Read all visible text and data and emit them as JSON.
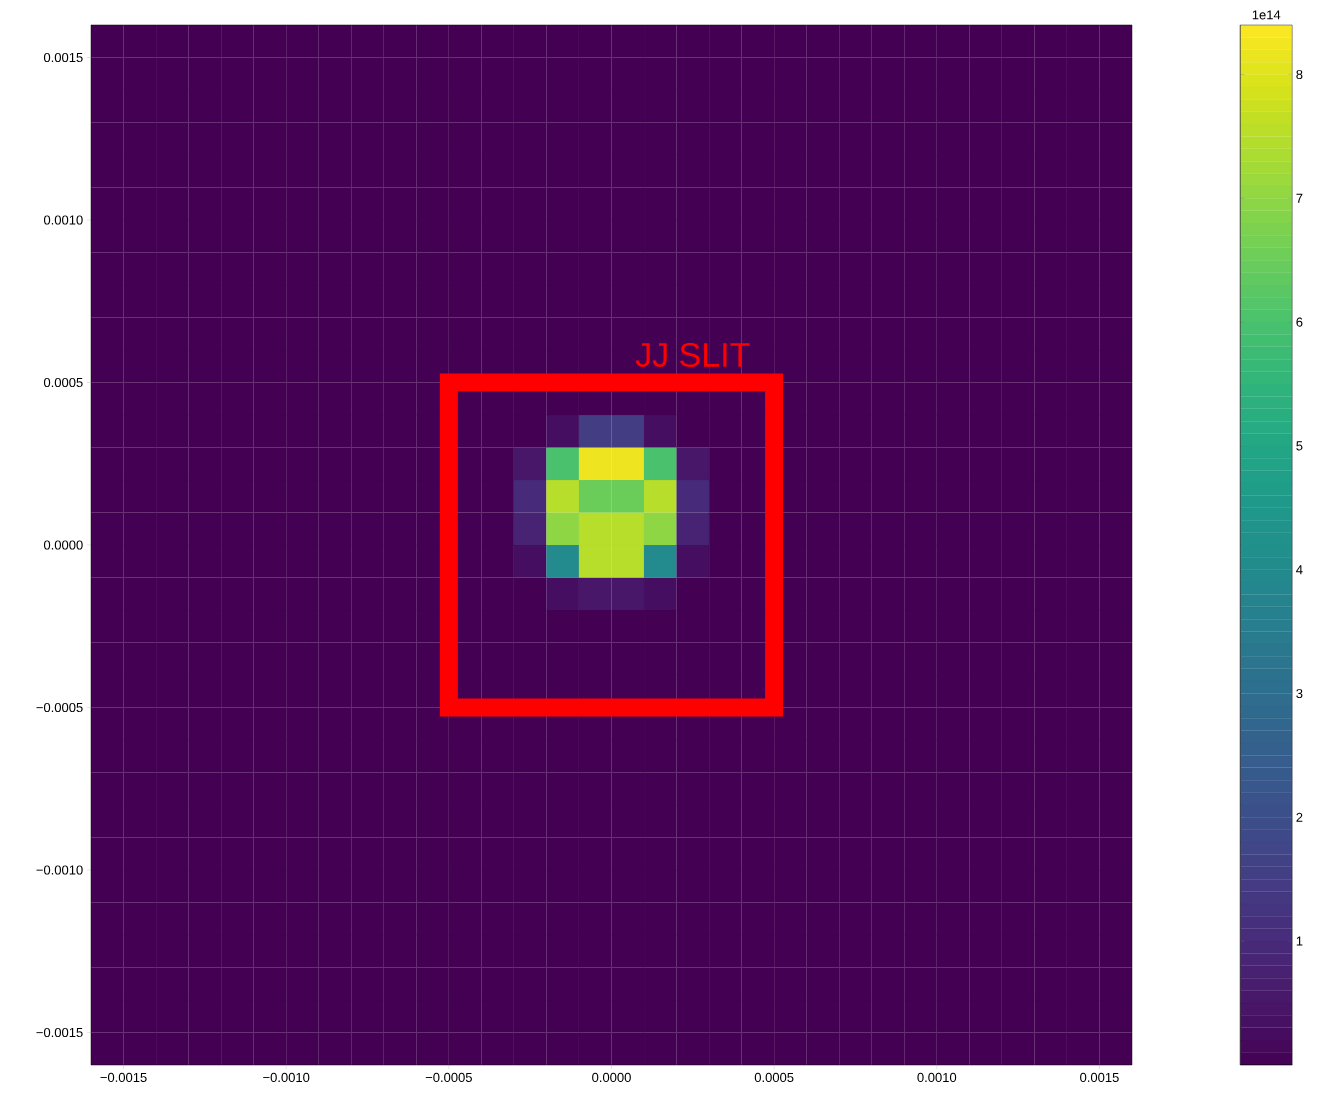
{
  "chart_data": {
    "type": "heatmap",
    "xlim": [
      -0.0016,
      0.0016
    ],
    "ylim": [
      -0.0016,
      0.0016
    ],
    "xticks": [
      {
        "value": -0.0015,
        "label": "−0.0015"
      },
      {
        "value": -0.001,
        "label": "−0.0010"
      },
      {
        "value": -0.0005,
        "label": "−0.0005"
      },
      {
        "value": 0,
        "label": "0.0000"
      },
      {
        "value": 0.0005,
        "label": "0.0005"
      },
      {
        "value": 0.001,
        "label": "0.0010"
      },
      {
        "value": 0.0015,
        "label": "0.0015"
      }
    ],
    "yticks": [
      {
        "value": -0.0015,
        "label": "−0.0015"
      },
      {
        "value": -0.001,
        "label": "−0.0010"
      },
      {
        "value": -0.0005,
        "label": "−0.0005"
      },
      {
        "value": 0,
        "label": "0.0000"
      },
      {
        "value": 0.0005,
        "label": "0.0005"
      },
      {
        "value": 0.001,
        "label": "0.0010"
      },
      {
        "value": 0.0015,
        "label": "0.0015"
      }
    ],
    "clabel": "1e14",
    "clim": [
      0,
      8.4
    ],
    "cticks": [
      1,
      2,
      3,
      4,
      5,
      6,
      7,
      8
    ],
    "annotations": [
      "JJ SLIT"
    ],
    "cells": [
      [
        0,
        0,
        0,
        0,
        0,
        0,
        0,
        0,
        0,
        0,
        0,
        0,
        0,
        0,
        0,
        0,
        0,
        0,
        0,
        0,
        0,
        0,
        0,
        0,
        0,
        0,
        0,
        0,
        0,
        0,
        0,
        0
      ],
      [
        0,
        0,
        0,
        0,
        0,
        0,
        0,
        0,
        0,
        0,
        0,
        0,
        0,
        0,
        0,
        0,
        0,
        0,
        0,
        0,
        0,
        0,
        0,
        0,
        0,
        0,
        0,
        0,
        0,
        0,
        0,
        0
      ],
      [
        0,
        0,
        0,
        0,
        0,
        0,
        0,
        0,
        0,
        0,
        0,
        0,
        0,
        0,
        0,
        0,
        0,
        0,
        0,
        0,
        0,
        0,
        0,
        0,
        0,
        0,
        0,
        0,
        0,
        0,
        0,
        0
      ],
      [
        0,
        0,
        0,
        0,
        0,
        0,
        0,
        0,
        0,
        0,
        0,
        0,
        0,
        0,
        0,
        0,
        0,
        0,
        0,
        0,
        0,
        0,
        0,
        0,
        0,
        0,
        0,
        0,
        0,
        0,
        0,
        0
      ],
      [
        0,
        0,
        0,
        0,
        0,
        0,
        0,
        0,
        0,
        0,
        0,
        0,
        0,
        0,
        0,
        0,
        0,
        0,
        0,
        0,
        0,
        0,
        0,
        0,
        0,
        0,
        0,
        0,
        0,
        0,
        0,
        0
      ],
      [
        0,
        0,
        0,
        0,
        0,
        0,
        0,
        0,
        0,
        0,
        0,
        0,
        0,
        0,
        0,
        0,
        0,
        0,
        0,
        0,
        0,
        0,
        0,
        0,
        0,
        0,
        0,
        0,
        0,
        0,
        0,
        0
      ],
      [
        0,
        0,
        0,
        0,
        0,
        0,
        0,
        0,
        0,
        0,
        0,
        0,
        0,
        0,
        0,
        0,
        0,
        0,
        0,
        0,
        0,
        0,
        0,
        0,
        0,
        0,
        0,
        0,
        0,
        0,
        0,
        0
      ],
      [
        0,
        0,
        0,
        0,
        0,
        0,
        0,
        0,
        0,
        0,
        0,
        0,
        0,
        0,
        0,
        0,
        0,
        0,
        0,
        0,
        0,
        0,
        0,
        0,
        0,
        0,
        0,
        0,
        0,
        0,
        0,
        0
      ],
      [
        0,
        0,
        0,
        0,
        0,
        0,
        0,
        0,
        0,
        0,
        0,
        0,
        0,
        0,
        0,
        0,
        0,
        0,
        0,
        0,
        0,
        0,
        0,
        0,
        0,
        0,
        0,
        0,
        0,
        0,
        0,
        0
      ],
      [
        0,
        0,
        0,
        0,
        0,
        0,
        0,
        0,
        0,
        0,
        0,
        0,
        0,
        0,
        0,
        0,
        0,
        0,
        0,
        0,
        0,
        0,
        0,
        0,
        0,
        0,
        0,
        0,
        0,
        0,
        0,
        0
      ],
      [
        0,
        0,
        0,
        0,
        0,
        0,
        0,
        0,
        0,
        0,
        0,
        0,
        0,
        0,
        0,
        0,
        0,
        0,
        0,
        0,
        0,
        0,
        0,
        0,
        0,
        0,
        0,
        0,
        0,
        0,
        0,
        0
      ],
      [
        0,
        0,
        0,
        0,
        0,
        0,
        0,
        0,
        0,
        0,
        0,
        0,
        0,
        0,
        0,
        0,
        0,
        0,
        0,
        0,
        0,
        0,
        0,
        0,
        0,
        0,
        0,
        0,
        0,
        0,
        0,
        0
      ],
      [
        0,
        0,
        0,
        0,
        0,
        0,
        0,
        0,
        0,
        0,
        0,
        0,
        0,
        0,
        0.3,
        1.5,
        1.5,
        0.3,
        0,
        0,
        0,
        0,
        0,
        0,
        0,
        0,
        0,
        0,
        0,
        0,
        0,
        0
      ],
      [
        0,
        0,
        0,
        0,
        0,
        0,
        0,
        0,
        0,
        0,
        0,
        0,
        0,
        0.5,
        6,
        8.2,
        8.2,
        6,
        0.5,
        0,
        0,
        0,
        0,
        0,
        0,
        0,
        0,
        0,
        0,
        0,
        0,
        0
      ],
      [
        0,
        0,
        0,
        0,
        0,
        0,
        0,
        0,
        0,
        0,
        0,
        0,
        0,
        1,
        7.5,
        6.5,
        6.5,
        7.5,
        1,
        0,
        0,
        0,
        0,
        0,
        0,
        0,
        0,
        0,
        0,
        0,
        0,
        0
      ],
      [
        0,
        0,
        0,
        0,
        0,
        0,
        0,
        0,
        0,
        0,
        0,
        0,
        0,
        0.8,
        7,
        7.5,
        7.5,
        7,
        0.8,
        0,
        0,
        0,
        0,
        0,
        0,
        0,
        0,
        0,
        0,
        0,
        0,
        0
      ],
      [
        0,
        0,
        0,
        0,
        0,
        0,
        0,
        0,
        0,
        0,
        0,
        0,
        0,
        0.3,
        4,
        7.5,
        7.5,
        4,
        0.3,
        0,
        0,
        0,
        0,
        0,
        0,
        0,
        0,
        0,
        0,
        0,
        0,
        0
      ],
      [
        0,
        0,
        0,
        0,
        0,
        0,
        0,
        0,
        0,
        0,
        0,
        0,
        0,
        0,
        0.3,
        0.5,
        0.5,
        0.3,
        0,
        0,
        0,
        0,
        0,
        0,
        0,
        0,
        0,
        0,
        0,
        0,
        0,
        0
      ],
      [
        0,
        0,
        0,
        0,
        0,
        0,
        0,
        0,
        0,
        0,
        0,
        0,
        0,
        0,
        0,
        0,
        0,
        0,
        0,
        0,
        0,
        0,
        0,
        0,
        0,
        0,
        0,
        0,
        0,
        0,
        0,
        0
      ],
      [
        0,
        0,
        0,
        0,
        0,
        0,
        0,
        0,
        0,
        0,
        0,
        0,
        0,
        0,
        0,
        0,
        0,
        0,
        0,
        0,
        0,
        0,
        0,
        0,
        0,
        0,
        0,
        0,
        0,
        0,
        0,
        0
      ],
      [
        0,
        0,
        0,
        0,
        0,
        0,
        0,
        0,
        0,
        0,
        0,
        0,
        0,
        0,
        0,
        0,
        0,
        0,
        0,
        0,
        0,
        0,
        0,
        0,
        0,
        0,
        0,
        0,
        0,
        0,
        0,
        0
      ],
      [
        0,
        0,
        0,
        0,
        0,
        0,
        0,
        0,
        0,
        0,
        0,
        0,
        0,
        0,
        0,
        0,
        0,
        0,
        0,
        0,
        0,
        0,
        0,
        0,
        0,
        0,
        0,
        0,
        0,
        0,
        0,
        0
      ],
      [
        0,
        0,
        0,
        0,
        0,
        0,
        0,
        0,
        0,
        0,
        0,
        0,
        0,
        0,
        0,
        0,
        0,
        0,
        0,
        0,
        0,
        0,
        0,
        0,
        0,
        0,
        0,
        0,
        0,
        0,
        0,
        0
      ],
      [
        0,
        0,
        0,
        0,
        0,
        0,
        0,
        0,
        0,
        0,
        0,
        0,
        0,
        0,
        0,
        0,
        0,
        0,
        0,
        0,
        0,
        0,
        0,
        0,
        0,
        0,
        0,
        0,
        0,
        0,
        0,
        0
      ],
      [
        0,
        0,
        0,
        0,
        0,
        0,
        0,
        0,
        0,
        0,
        0,
        0,
        0,
        0,
        0,
        0,
        0,
        0,
        0,
        0,
        0,
        0,
        0,
        0,
        0,
        0,
        0,
        0,
        0,
        0,
        0,
        0
      ],
      [
        0,
        0,
        0,
        0,
        0,
        0,
        0,
        0,
        0,
        0,
        0,
        0,
        0,
        0,
        0,
        0,
        0,
        0,
        0,
        0,
        0,
        0,
        0,
        0,
        0,
        0,
        0,
        0,
        0,
        0,
        0,
        0
      ],
      [
        0,
        0,
        0,
        0,
        0,
        0,
        0,
        0,
        0,
        0,
        0,
        0,
        0,
        0,
        0,
        0,
        0,
        0,
        0,
        0,
        0,
        0,
        0,
        0,
        0,
        0,
        0,
        0,
        0,
        0,
        0,
        0
      ],
      [
        0,
        0,
        0,
        0,
        0,
        0,
        0,
        0,
        0,
        0,
        0,
        0,
        0,
        0,
        0,
        0,
        0,
        0,
        0,
        0,
        0,
        0,
        0,
        0,
        0,
        0,
        0,
        0,
        0,
        0,
        0,
        0
      ],
      [
        0,
        0,
        0,
        0,
        0,
        0,
        0,
        0,
        0,
        0,
        0,
        0,
        0,
        0,
        0,
        0,
        0,
        0,
        0,
        0,
        0,
        0,
        0,
        0,
        0,
        0,
        0,
        0,
        0,
        0,
        0,
        0
      ],
      [
        0,
        0,
        0,
        0,
        0,
        0,
        0,
        0,
        0,
        0,
        0,
        0,
        0,
        0,
        0,
        0,
        0,
        0,
        0,
        0,
        0,
        0,
        0,
        0,
        0,
        0,
        0,
        0,
        0,
        0,
        0,
        0
      ],
      [
        0,
        0,
        0,
        0,
        0,
        0,
        0,
        0,
        0,
        0,
        0,
        0,
        0,
        0,
        0,
        0,
        0,
        0,
        0,
        0,
        0,
        0,
        0,
        0,
        0,
        0,
        0,
        0,
        0,
        0,
        0,
        0
      ],
      [
        0,
        0,
        0,
        0,
        0,
        0,
        0,
        0,
        0,
        0,
        0,
        0,
        0,
        0,
        0,
        0,
        0,
        0,
        0,
        0,
        0,
        0,
        0,
        0,
        0,
        0,
        0,
        0,
        0,
        0,
        0,
        0
      ]
    ]
  }
}
